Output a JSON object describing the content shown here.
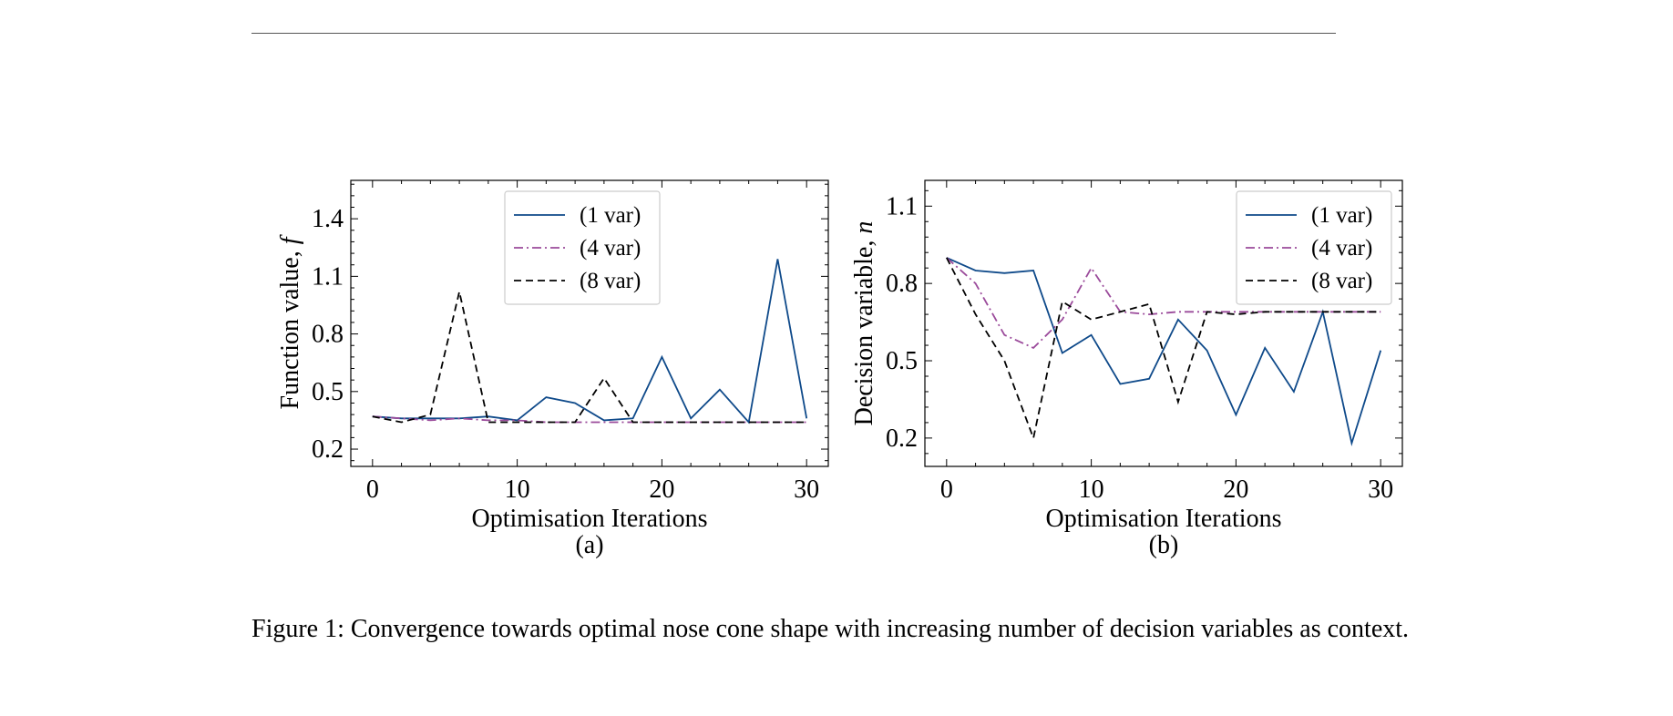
{
  "colors": {
    "one_var": "#0f4a8a",
    "four_var": "#9b4b9b",
    "eight_var": "#000000"
  },
  "chart_data": [
    {
      "type": "line",
      "panel_label": "(a)",
      "xlabel": "Optimisation Iterations",
      "ylabel_text": "Function value, ",
      "ylabel_symbol": "f",
      "xlim": [
        -1.5,
        31.5
      ],
      "ylim": [
        0.11,
        1.6
      ],
      "xticks": [
        0,
        10,
        20,
        30
      ],
      "yticks": [
        0.2,
        0.5,
        0.8,
        1.1,
        1.4
      ],
      "ytick_labels": [
        "0.2",
        "0.5",
        "0.8",
        "1.1",
        "1.4"
      ],
      "legend_position": "top-center",
      "series": [
        {
          "name": "(1 var)",
          "style": "solid",
          "color_key": "one_var",
          "x": [
            0,
            2,
            4,
            6,
            8,
            10,
            12,
            14,
            16,
            18,
            20,
            22,
            24,
            26,
            28,
            30
          ],
          "y": [
            0.37,
            0.36,
            0.36,
            0.36,
            0.37,
            0.35,
            0.47,
            0.44,
            0.35,
            0.36,
            0.68,
            0.36,
            0.51,
            0.34,
            1.19,
            0.36
          ]
        },
        {
          "name": "(4 var)",
          "style": "dashdot",
          "color_key": "four_var",
          "x": [
            0,
            2,
            4,
            6,
            8,
            10,
            12,
            14,
            16,
            18,
            20,
            22,
            24,
            26,
            28,
            30
          ],
          "y": [
            0.37,
            0.36,
            0.35,
            0.36,
            0.35,
            0.35,
            0.34,
            0.34,
            0.34,
            0.34,
            0.34,
            0.34,
            0.34,
            0.34,
            0.34,
            0.34
          ]
        },
        {
          "name": "(8 var)",
          "style": "dashed",
          "color_key": "eight_var",
          "x": [
            0,
            2,
            4,
            6,
            8,
            10,
            12,
            14,
            16,
            18,
            20,
            22,
            24,
            26,
            28,
            30
          ],
          "y": [
            0.37,
            0.34,
            0.38,
            1.02,
            0.34,
            0.34,
            0.34,
            0.34,
            0.57,
            0.34,
            0.34,
            0.34,
            0.34,
            0.34,
            0.34,
            0.34
          ]
        }
      ]
    },
    {
      "type": "line",
      "panel_label": "(b)",
      "xlabel": "Optimisation Iterations",
      "ylabel_text": "Decision variable, ",
      "ylabel_symbol": "n",
      "xlim": [
        -1.5,
        31.5
      ],
      "ylim": [
        0.09,
        1.2
      ],
      "xticks": [
        0,
        10,
        20,
        30
      ],
      "yticks": [
        0.2,
        0.5,
        0.8,
        1.1
      ],
      "ytick_labels": [
        "0.2",
        "0.5",
        "0.8",
        "1.1"
      ],
      "legend_position": "top-right",
      "series": [
        {
          "name": "(1 var)",
          "style": "solid",
          "color_key": "one_var",
          "x": [
            0,
            2,
            4,
            6,
            8,
            10,
            12,
            14,
            16,
            18,
            20,
            22,
            24,
            26,
            28,
            30
          ],
          "y": [
            0.9,
            0.85,
            0.84,
            0.85,
            0.53,
            0.6,
            0.41,
            0.43,
            0.66,
            0.54,
            0.29,
            0.55,
            0.38,
            0.69,
            0.18,
            0.54
          ]
        },
        {
          "name": "(4 var)",
          "style": "dashdot",
          "color_key": "four_var",
          "x": [
            0,
            2,
            4,
            6,
            8,
            10,
            12,
            14,
            16,
            18,
            20,
            22,
            24,
            26,
            28,
            30
          ],
          "y": [
            0.9,
            0.8,
            0.6,
            0.55,
            0.66,
            0.86,
            0.69,
            0.68,
            0.69,
            0.69,
            0.69,
            0.69,
            0.69,
            0.69,
            0.69,
            0.69
          ]
        },
        {
          "name": "(8 var)",
          "style": "dashed",
          "color_key": "eight_var",
          "x": [
            0,
            2,
            4,
            6,
            8,
            10,
            12,
            14,
            16,
            18,
            20,
            22,
            24,
            26,
            28,
            30
          ],
          "y": [
            0.9,
            0.68,
            0.5,
            0.2,
            0.73,
            0.66,
            0.69,
            0.72,
            0.34,
            0.69,
            0.68,
            0.69,
            0.69,
            0.69,
            0.69,
            0.69
          ]
        }
      ]
    }
  ],
  "caption": "Figure 1: Convergence towards optimal nose cone shape with increasing number of decision variables as context."
}
